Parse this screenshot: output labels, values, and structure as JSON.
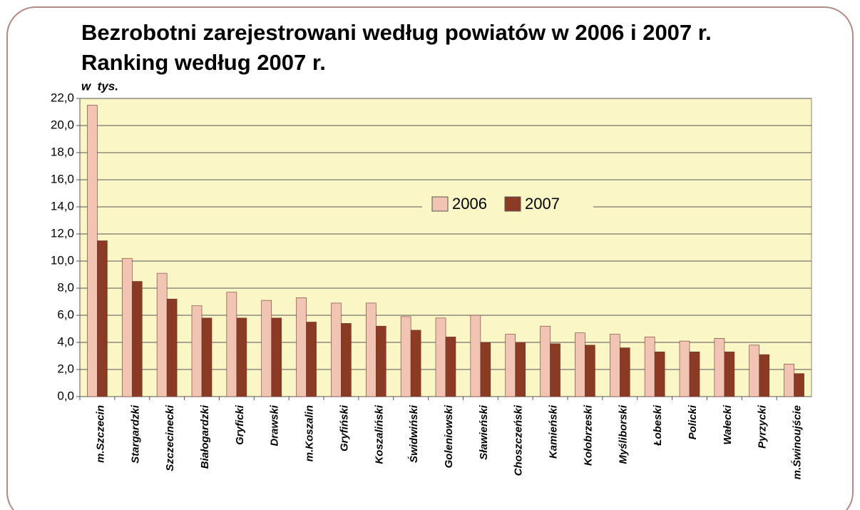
{
  "chart_data": {
    "type": "bar",
    "title": "Bezrobotni zarejestrowani według powiatów w 2006 i 2007 r.",
    "subtitle": "Ranking według 2007 r.",
    "y_label": "w  tys.",
    "categories": [
      "m.Szczecin",
      "Stargardzki",
      "Szczecinecki",
      "Białogardzki",
      "Gryficki",
      "Drawski",
      "m.Koszalin",
      "Gryfiński",
      "Koszaliński",
      "Świdwiński",
      "Goleniowski",
      "Sławieński",
      "Choszczeński",
      "Kamieński",
      "Kołobrzeski",
      "Myśliborski",
      "Łobeski",
      "Policki",
      "Wałecki",
      "Pyrzycki",
      "m.Świnoujście"
    ],
    "series": [
      {
        "name": "2006",
        "color": "#f2c4b4",
        "values": [
          21.5,
          10.2,
          9.1,
          6.7,
          7.7,
          7.1,
          7.3,
          6.9,
          6.9,
          5.9,
          5.8,
          6.0,
          4.6,
          5.2,
          4.7,
          4.6,
          4.4,
          4.1,
          4.3,
          3.8,
          2.4
        ]
      },
      {
        "name": "2007",
        "color": "#8b3a24",
        "values": [
          11.5,
          8.5,
          7.2,
          5.8,
          5.8,
          5.8,
          5.5,
          5.4,
          5.2,
          4.9,
          4.4,
          4.0,
          4.0,
          3.9,
          3.8,
          3.6,
          3.3,
          3.3,
          3.3,
          3.1,
          1.7
        ]
      }
    ],
    "ylim": [
      0,
      22
    ],
    "yticks": [
      {
        "value": 0,
        "label": "0,0"
      },
      {
        "value": 2,
        "label": "2,0"
      },
      {
        "value": 4,
        "label": "4,0"
      },
      {
        "value": 6,
        "label": "6,0"
      },
      {
        "value": 8,
        "label": "8,0"
      },
      {
        "value": 10,
        "label": "10,0"
      },
      {
        "value": 12,
        "label": "12,0"
      },
      {
        "value": 14,
        "label": "14,0"
      },
      {
        "value": 16,
        "label": "16,0"
      },
      {
        "value": 18,
        "label": "18,0"
      },
      {
        "value": 20,
        "label": "20,0"
      },
      {
        "value": 22,
        "label": "22,0"
      }
    ],
    "grid": true
  }
}
